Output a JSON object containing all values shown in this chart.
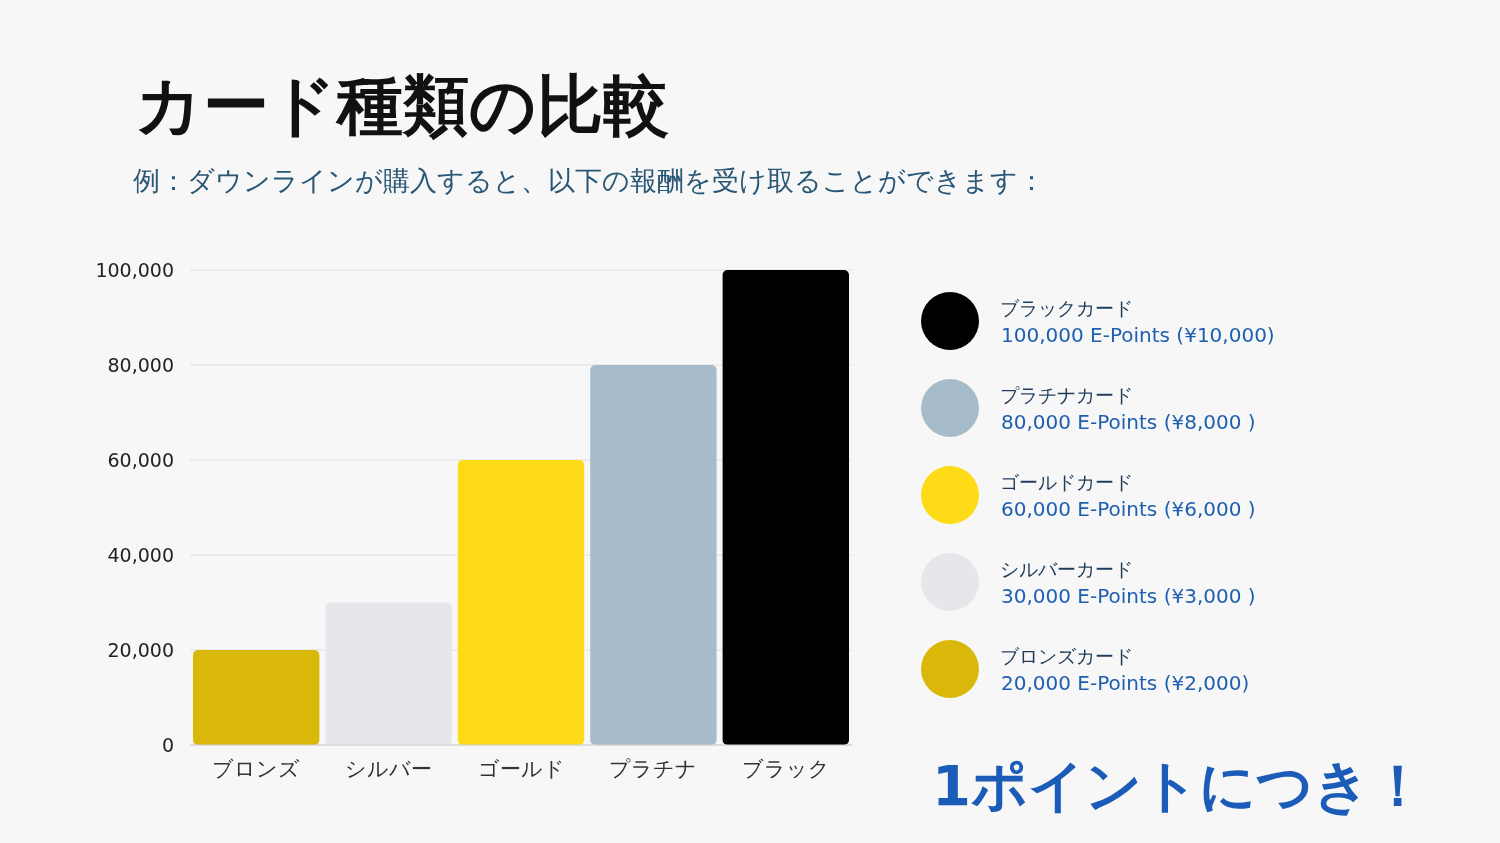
{
  "chart_data": {
    "type": "bar",
    "title": "カード種類の比較",
    "subtitle": "例：ダウンラインが購入すると、以下の報酬を受け取ることができます：",
    "categories": [
      "ブロンズ",
      "シルバー",
      "ゴールド",
      "プラチナ",
      "ブラック"
    ],
    "series": [
      {
        "name": "ブラックカード",
        "color": "#000000",
        "values": [
          null,
          null,
          null,
          null,
          100000
        ]
      },
      {
        "name": "プラチナカード",
        "color": "#a7bccb",
        "values": [
          null,
          null,
          null,
          80000,
          null
        ]
      },
      {
        "name": "ゴールドカード",
        "color": "#fddb17",
        "values": [
          null,
          null,
          60000,
          null,
          null
        ]
      },
      {
        "name": "シルバーカード",
        "color": "#e6e7ea",
        "values": [
          null,
          30000,
          null,
          null,
          null
        ]
      },
      {
        "name": "ブロンズカード",
        "color": "#d9b80a",
        "values": [
          20000,
          null,
          null,
          null,
          null
        ]
      }
    ],
    "ylim": [
      0,
      100000
    ],
    "yticks": [
      {
        "value": 0,
        "label": "0"
      },
      {
        "value": 20000,
        "label": "20,000"
      },
      {
        "value": 40000,
        "label": "40,000"
      },
      {
        "value": 60000,
        "label": "60,000"
      },
      {
        "value": 80000,
        "label": "80,000"
      },
      {
        "value": 100000,
        "label": "100,000"
      }
    ],
    "grid": "y",
    "legend": "right",
    "annotations": [
      "100,000 E-Points (¥10,000)",
      "80,000 E-Points (¥8,000 )",
      "60,000 E-Points (¥6,000 )",
      "30,000 E-Points (¥3,000 )",
      "20,000 E-Points (¥2,000)",
      "1ポイントにつき！"
    ]
  }
}
